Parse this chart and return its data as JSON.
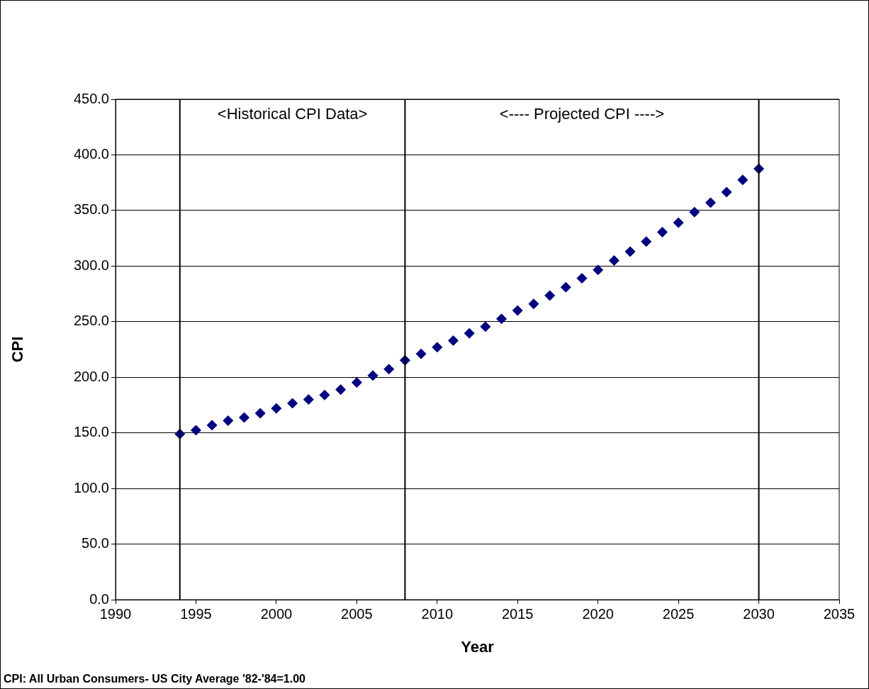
{
  "chart_data": {
    "type": "scatter",
    "xlabel": "Year",
    "ylabel": "CPI",
    "x": [
      1994,
      1995,
      1996,
      1997,
      1998,
      1999,
      2000,
      2001,
      2002,
      2003,
      2004,
      2005,
      2006,
      2007,
      2008,
      2009,
      2010,
      2011,
      2012,
      2013,
      2014,
      2015,
      2016,
      2017,
      2018,
      2019,
      2020,
      2021,
      2022,
      2023,
      2024,
      2025,
      2026,
      2027,
      2028,
      2029,
      2030
    ],
    "series": [
      {
        "color": "#000080",
        "values": [
          149,
          152.4,
          156.9,
          161,
          163.8,
          167.6,
          172,
          176.6,
          180,
          184,
          188.9,
          195.3,
          201.6,
          207.3,
          215.3,
          221,
          227,
          233,
          239.5,
          245.5,
          252.5,
          260,
          266,
          273.5,
          281,
          289,
          296.5,
          305,
          313,
          322,
          330.5,
          339,
          348.5,
          357,
          366.5,
          377.5,
          387.5
        ]
      }
    ],
    "xlim": [
      1990,
      2035
    ],
    "xticks": [
      1990,
      1995,
      2000,
      2005,
      2010,
      2015,
      2020,
      2025,
      2030,
      2035
    ],
    "ylim": [
      0,
      450
    ],
    "yticks": [
      {
        "value": 0,
        "label": "0.0"
      },
      {
        "value": 50,
        "label": "50.0"
      },
      {
        "value": 100,
        "label": "100.0"
      },
      {
        "value": 150,
        "label": "150.0"
      },
      {
        "value": 200,
        "label": "200.0"
      },
      {
        "value": 250,
        "label": "250.0"
      },
      {
        "value": 300,
        "label": "300.0"
      },
      {
        "value": 350,
        "label": "350.0"
      },
      {
        "value": 400,
        "label": "400.0"
      },
      {
        "value": 450,
        "label": "450.0"
      }
    ],
    "grid": "y",
    "legend": false,
    "marker": "diamond",
    "ref_lines": [
      {
        "axis": "x",
        "value": 1994,
        "color": "#000000"
      },
      {
        "axis": "x",
        "value": 2008,
        "color": "#000000"
      },
      {
        "axis": "x",
        "value": 2030,
        "color": "#000000"
      }
    ],
    "annotations": [
      "<Historical CPI Data>",
      "<---- Projected CPI ---->",
      "CPI: All Urban Consumers- US City Average '82-'84=1.00"
    ]
  }
}
